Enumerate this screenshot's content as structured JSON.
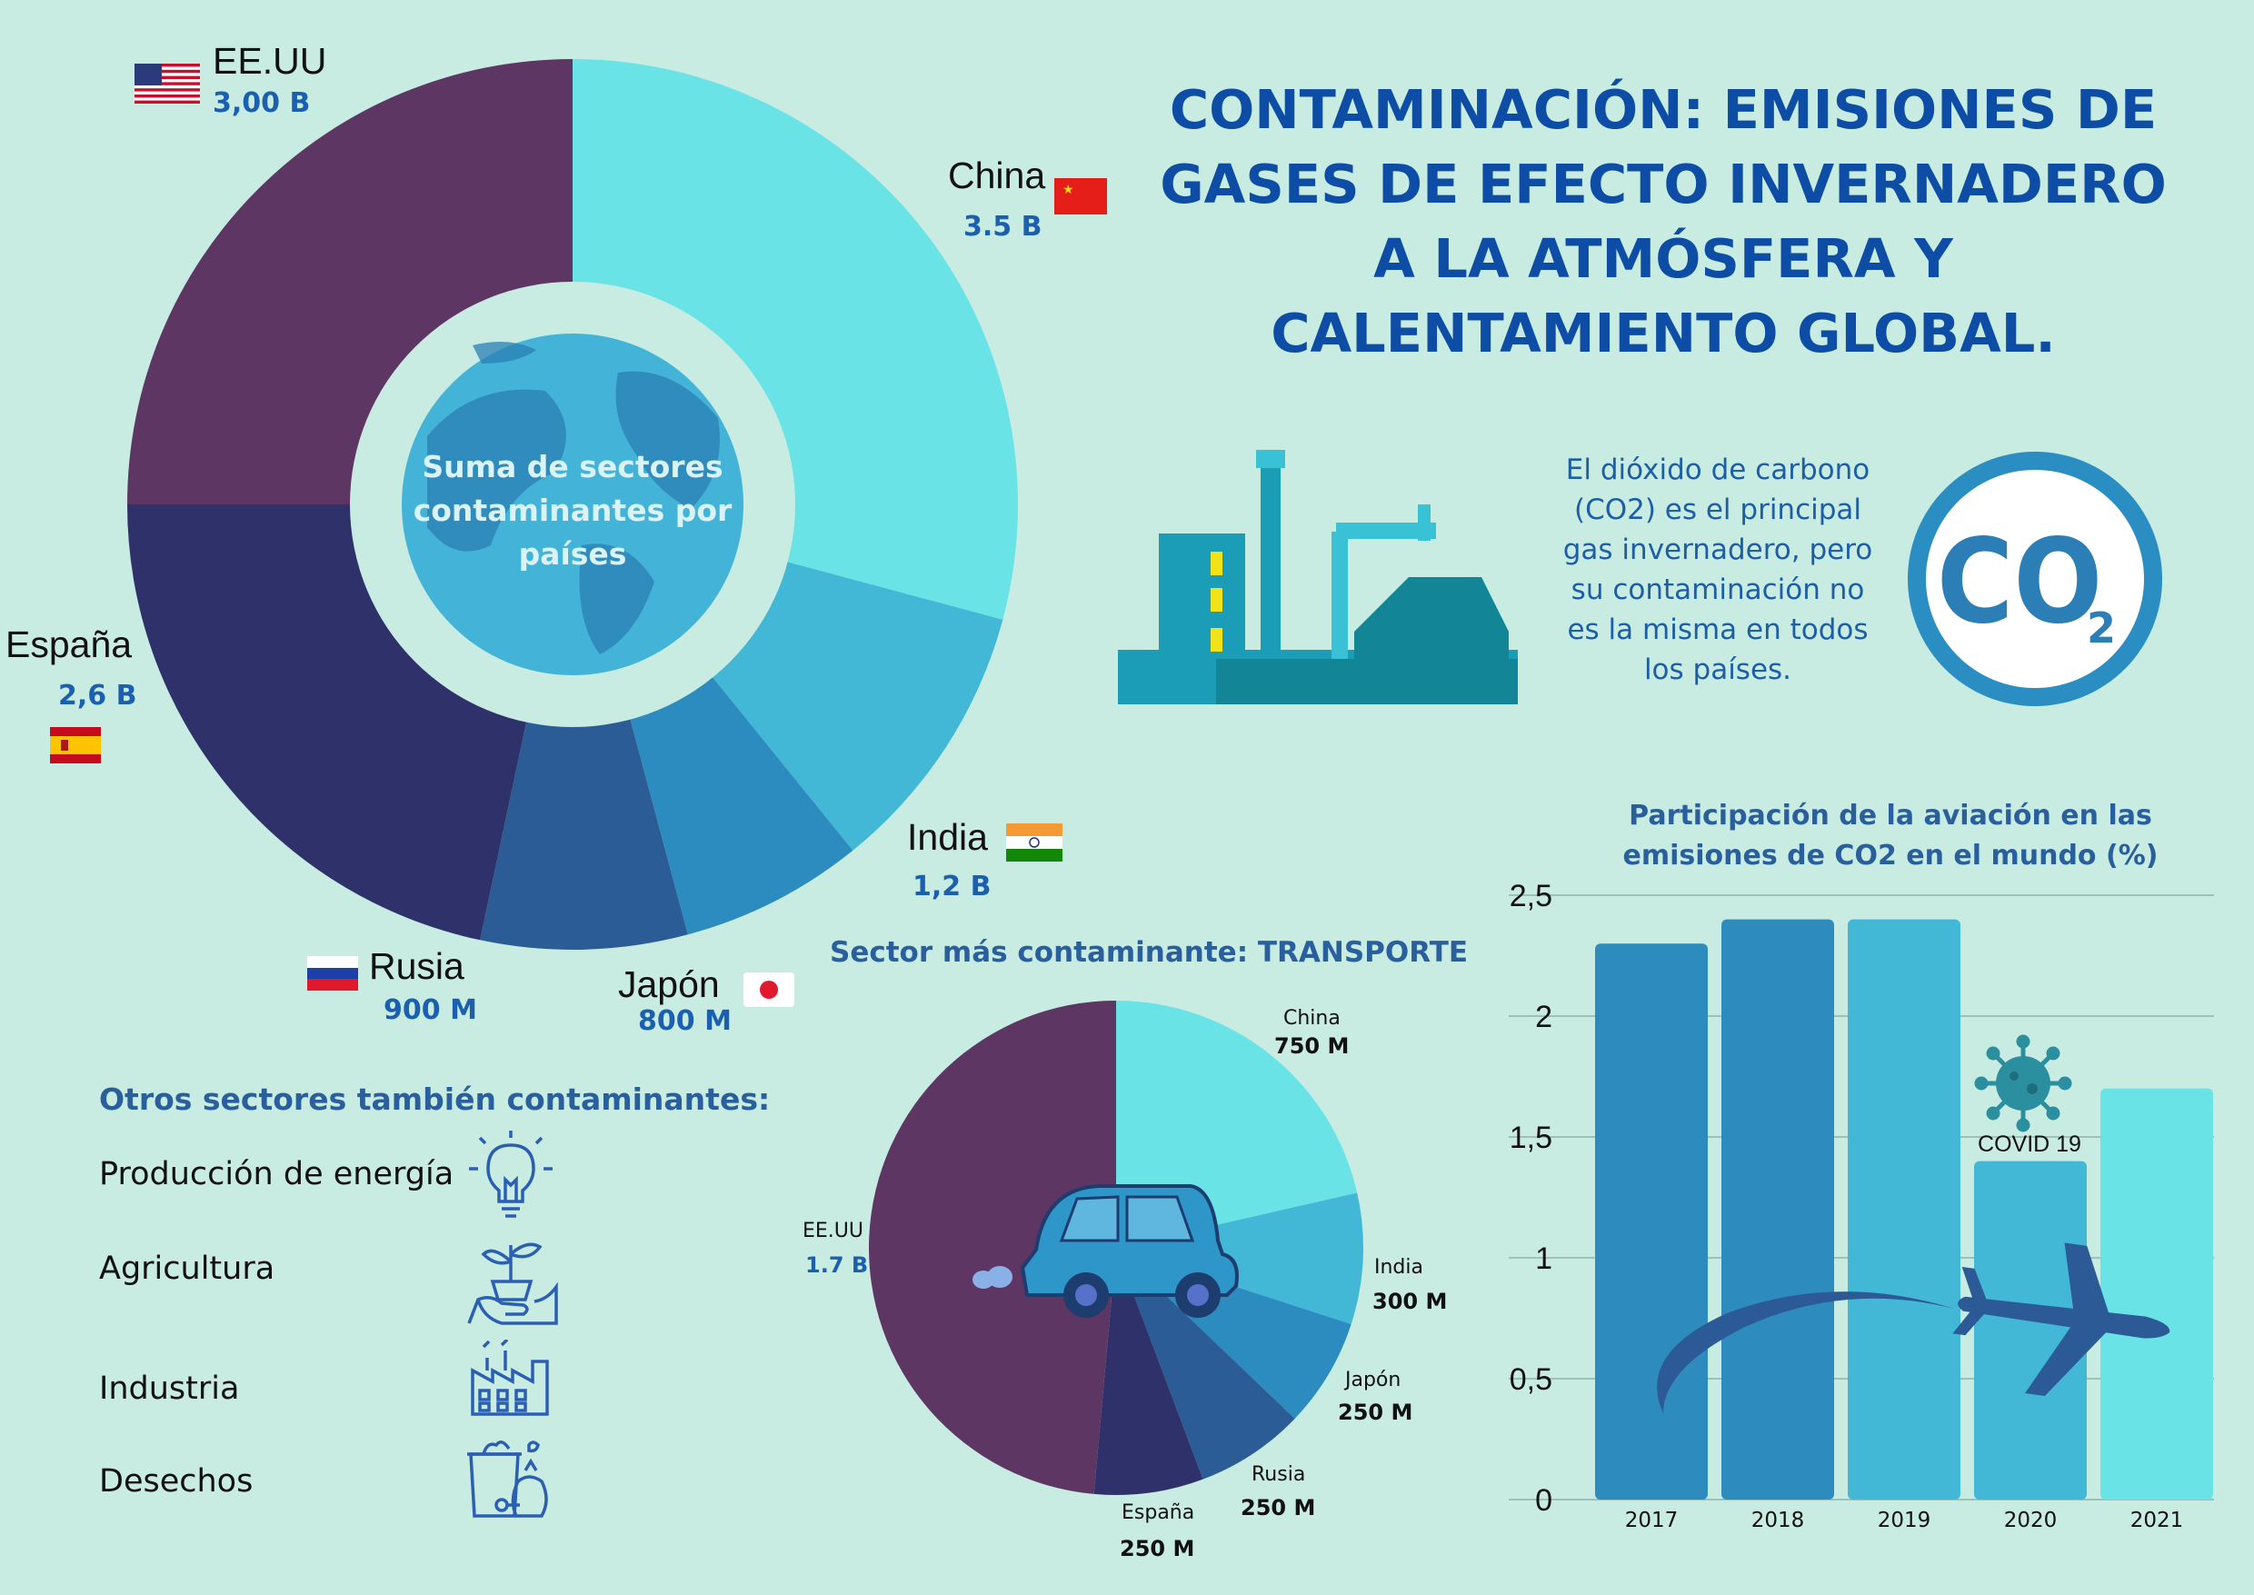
{
  "title": {
    "lines": [
      "CONTAMINACIÓN: EMISIONES DE",
      "GASES DE EFECTO INVERNADERO",
      "A LA ATMÓSFERA Y",
      "CALENTAMIENTO GLOBAL."
    ]
  },
  "co2_text": {
    "lines": [
      "El dióxido de carbono",
      "(CO2) es el principal",
      "gas invernadero, pero",
      "su contaminación no",
      "es la misma en todos",
      "los países."
    ],
    "badge_main": "CO",
    "badge_sub": "2"
  },
  "donut": {
    "center_lines": [
      "Suma de sectores",
      "contaminantes por",
      "países"
    ]
  },
  "transport": {
    "heading": "Sector más contaminante: TRANSPORTE"
  },
  "other_sectors": {
    "heading": "Otros sectores también contaminantes:",
    "items": [
      "Producción de energía",
      "Agricultura",
      "Industria",
      "Desechos"
    ]
  },
  "bar": {
    "title_lines": [
      "Participación de la aviación en las",
      "emisiones de CO2 en el mundo (%)"
    ],
    "annotation": "COVID 19"
  },
  "colors": {
    "background": "#c8ebe2",
    "title": "#0d4da6",
    "china": "#6ae3e6",
    "india": "#43b7d6",
    "japon": "#2c8cc0",
    "rusia": "#2c5c96",
    "espana": "#2f316a",
    "eeuu": "#5d3664"
  },
  "chart_data": [
    {
      "type": "pie",
      "title": "",
      "center_label": "Suma de sectores contaminantes por países",
      "categories": [
        "China",
        "India",
        "Japón",
        "Rusia",
        "España",
        "EE.UU"
      ],
      "value_labels": [
        "3.5 B",
        "1,2 B",
        "800 M",
        "900 M",
        "2,6 B",
        "3,00 B"
      ],
      "values": [
        3.5,
        1.2,
        0.8,
        0.9,
        2.6,
        3.0
      ],
      "units": "billions"
    },
    {
      "type": "pie",
      "title": "Sector más contaminante: TRANSPORTE",
      "categories": [
        "China",
        "India",
        "Japón",
        "Rusia",
        "España",
        "EE.UU"
      ],
      "value_labels": [
        "750 M",
        "300 M",
        "250 M",
        "250 M",
        "250 M",
        "1.7 B"
      ],
      "values": [
        750,
        300,
        250,
        250,
        250,
        1700
      ],
      "units": "millions"
    },
    {
      "type": "bar",
      "title": "Participación de la aviación en las emisiones de CO2 en el mundo (%)",
      "categories": [
        "2017",
        "2018",
        "2019",
        "2020",
        "2021"
      ],
      "values": [
        2.3,
        2.4,
        2.4,
        1.4,
        1.7
      ],
      "y_ticks": [
        "0",
        "0,5",
        "1",
        "1,5",
        "2",
        "2,5"
      ],
      "ylim": [
        0,
        2.5
      ],
      "grid": true,
      "annotation": "COVID 19"
    }
  ]
}
